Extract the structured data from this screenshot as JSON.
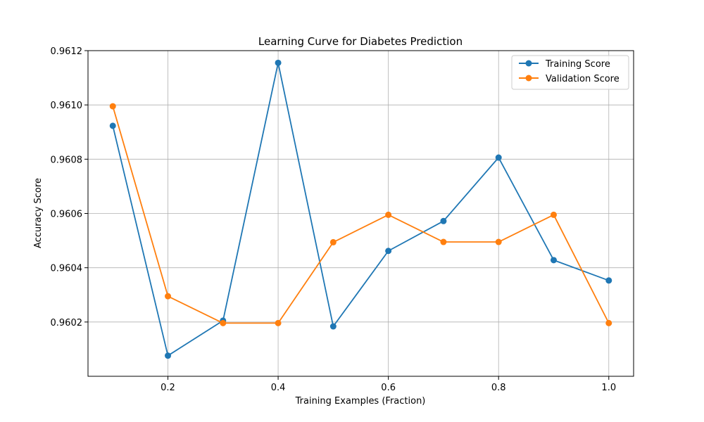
{
  "chart_data": {
    "type": "line",
    "title": "Learning Curve for Diabetes Prediction",
    "xlabel": "Training Examples (Fraction)",
    "ylabel": "Accuracy Score",
    "x": [
      0.1,
      0.2,
      0.3,
      0.4,
      0.5,
      0.6,
      0.7,
      0.8,
      0.9,
      1.0
    ],
    "xlim": [
      0.055,
      1.045
    ],
    "ylim": [
      0.96,
      0.9612
    ],
    "xticks": [
      "0.2",
      "0.4",
      "0.6",
      "0.8",
      "1.0"
    ],
    "yticks": [
      "0.9602",
      "0.9604",
      "0.9606",
      "0.9608",
      "0.9610",
      "0.9612"
    ],
    "grid": true,
    "legend_position": "top-right",
    "series": [
      {
        "name": "Training Score",
        "color": "#1f77b4",
        "values": [
          0.960923,
          0.960076,
          0.960205,
          0.961155,
          0.960184,
          0.960462,
          0.960572,
          0.960806,
          0.960428,
          0.960353
        ]
      },
      {
        "name": "Validation Score",
        "color": "#ff7f0e",
        "values": [
          0.960995,
          0.960295,
          0.960196,
          0.960196,
          0.960494,
          0.960595,
          0.960495,
          0.960495,
          0.960595,
          0.960196
        ]
      }
    ]
  }
}
